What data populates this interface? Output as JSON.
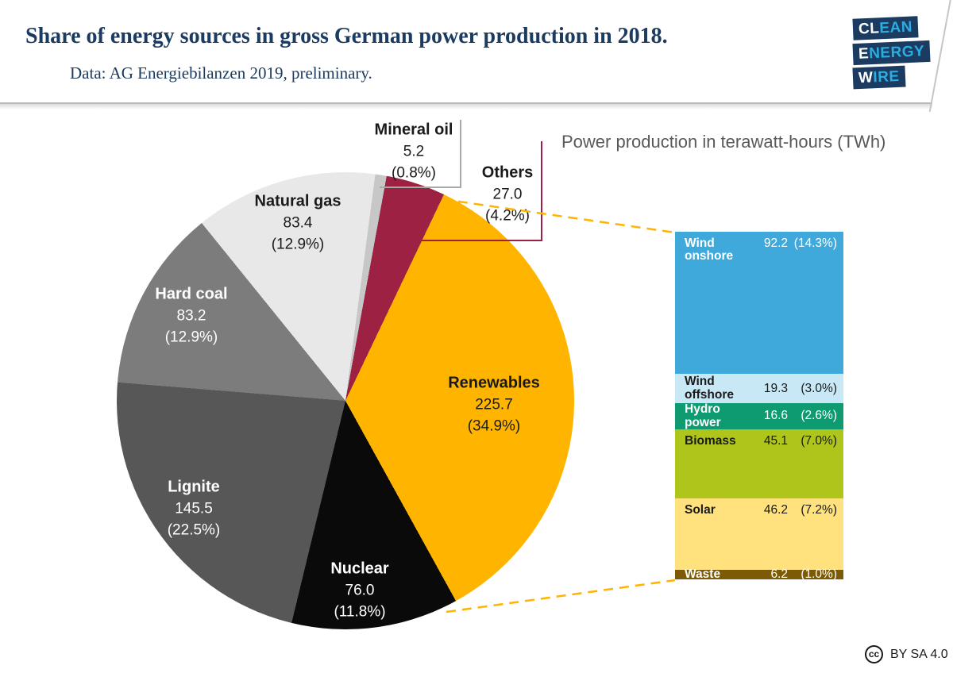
{
  "header": {
    "title": "Share of energy sources in gross German power production in 2018.",
    "subtitle": "Data: AG Energiebilanzen 2019, preliminary.",
    "logo": {
      "lines": [
        {
          "white": "CL",
          "cyan": "EAN"
        },
        {
          "white": "E",
          "cyan": "NERGY"
        },
        {
          "white": "W",
          "cyan": "IRE"
        }
      ]
    }
  },
  "chart_data": {
    "type": "pie",
    "title": "Share of energy sources in gross German power production in 2018",
    "unit": "TWh",
    "start_angle_deg": 7.5,
    "slices": [
      {
        "label": "Mineral oil",
        "value": 5.2,
        "pct": 0.8,
        "color": "#c7c7c7",
        "text_color": "#1a1a1a"
      },
      {
        "label": "Others",
        "value": 27.0,
        "pct": 4.2,
        "color": "#9c2142",
        "text_color": "#1a1a1a"
      },
      {
        "label": "Renewables",
        "value": 225.7,
        "pct": 34.9,
        "color": "#ffb400",
        "text_color": "#1a1a1a"
      },
      {
        "label": "Nuclear",
        "value": 76.0,
        "pct": 11.8,
        "color": "#0a0a0a",
        "text_color": "#ffffff"
      },
      {
        "label": "Lignite",
        "value": 145.5,
        "pct": 22.5,
        "color": "#575757",
        "text_color": "#ffffff"
      },
      {
        "label": "Hard coal",
        "value": 83.2,
        "pct": 12.9,
        "color": "#7c7c7c",
        "text_color": "#ffffff"
      },
      {
        "label": "Natural gas",
        "value": 83.4,
        "pct": 12.9,
        "color": "#e8e8e8",
        "text_color": "#1a1a1a"
      }
    ],
    "breakdown": {
      "type": "stacked-bar",
      "title": "Power production in terawatt-hours (TWh)",
      "segments": [
        {
          "label": "Wind onshore",
          "value": 92.2,
          "pct": 14.3,
          "color": "#3fa9dc",
          "text_color": "#ffffff"
        },
        {
          "label": "Wind offshore",
          "value": 19.3,
          "pct": 3.0,
          "color": "#c9e8f6",
          "text_color": "#1a1a1a"
        },
        {
          "label": "Hydro power",
          "value": 16.6,
          "pct": 2.6,
          "color": "#0f9b72",
          "text_color": "#ffffff"
        },
        {
          "label": "Biomass",
          "value": 45.1,
          "pct": 7.0,
          "color": "#b0c51c",
          "text_color": "#1a1a1a"
        },
        {
          "label": "Solar",
          "value": 46.2,
          "pct": 7.2,
          "color": "#ffe27d",
          "text_color": "#1a1a1a"
        },
        {
          "label": "Waste",
          "value": 6.2,
          "pct": 1.0,
          "color": "#7d5b06",
          "text_color": "#ffffff"
        }
      ]
    },
    "connector_color": "#ffb400",
    "callout_colors": {
      "mineral_oil": "#a8a8a8",
      "others": "#9c2142"
    }
  },
  "footer": {
    "cc": "cc",
    "license": "BY SA 4.0"
  }
}
